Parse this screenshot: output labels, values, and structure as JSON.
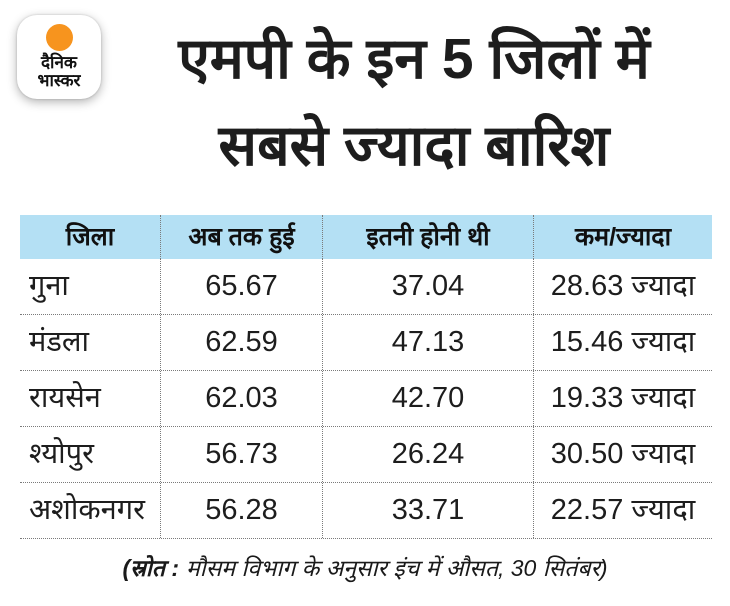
{
  "brand": {
    "name": "दैनिक भास्कर",
    "logo_line1": "दैनिक",
    "logo_line2": "भास्कर",
    "logo_dot_color": "#F7941E"
  },
  "title": {
    "line1": "एमपी के इन 5 जिलों में",
    "line2": "सबसे ज्यादा बारिश"
  },
  "table": {
    "headers": [
      "जिला",
      "अब तक हुई",
      "इतनी होनी थी",
      "कम/ज्यादा"
    ],
    "rows": [
      {
        "district": "गुना",
        "actual": "65.67",
        "expected": "37.04",
        "diff": "28.63 ज्यादा"
      },
      {
        "district": "मंडला",
        "actual": "62.59",
        "expected": "47.13",
        "diff": "15.46 ज्यादा"
      },
      {
        "district": "रायसेन",
        "actual": "62.03",
        "expected": "42.70",
        "diff": "19.33 ज्यादा"
      },
      {
        "district": "श्योपुर",
        "actual": "56.73",
        "expected": "26.24",
        "diff": "30.50 ज्यादा"
      },
      {
        "district": "अशोकनगर",
        "actual": "56.28",
        "expected": "33.71",
        "diff": "22.57 ज्यादा"
      }
    ]
  },
  "footer": {
    "label": "(स्रोत :",
    "text": "मौसम विभाग के अनुसार इंच में औसत, 30 सितंबर)"
  },
  "colors": {
    "header_bg": "#B4E0F4",
    "divider": "#7A7A7A",
    "text": "#1D1D1D",
    "accent_orange": "#F7941E"
  },
  "chart_data": {
    "type": "table",
    "title": "एमपी के इन 5 जिलों में सबसे ज्यादा बारिश",
    "columns": [
      "जिला",
      "अब तक हुई",
      "इतनी होनी थी",
      "कम/ज्यादा"
    ],
    "rows": [
      [
        "गुना",
        65.67,
        37.04,
        28.63
      ],
      [
        "मंडला",
        62.59,
        47.13,
        15.46
      ],
      [
        "रायसेन",
        62.03,
        42.7,
        19.33
      ],
      [
        "श्योपुर",
        56.73,
        26.24,
        30.5
      ],
      [
        "अशोकनगर",
        56.28,
        33.71,
        22.57
      ]
    ],
    "diff_direction": "ज्यादा",
    "note": "(स्रोत : मौसम विभाग के अनुसार इंच में औसत, 30 सितंबर)"
  }
}
